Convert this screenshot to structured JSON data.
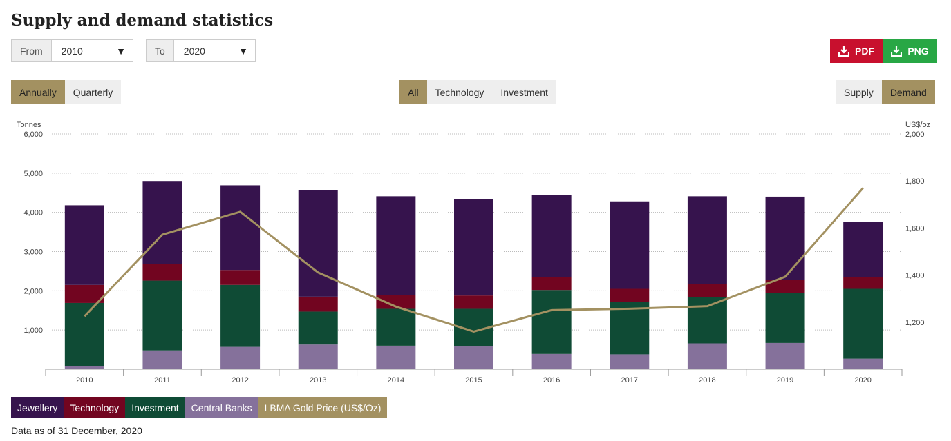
{
  "title": "Supply and demand statistics",
  "from": {
    "label": "From",
    "value": "2010"
  },
  "to": {
    "label": "To",
    "value": "2020"
  },
  "downloads": {
    "pdf": "PDF",
    "png": "PNG",
    "pdf_color": "#c8102e",
    "png_color": "#28a745"
  },
  "period": {
    "annually": "Annually",
    "quarterly": "Quarterly",
    "active": "annually"
  },
  "sector": {
    "all": "All",
    "technology": "Technology",
    "investment": "Investment",
    "active": "all"
  },
  "side": {
    "supply": "Supply",
    "demand": "Demand",
    "active": "demand"
  },
  "legend": [
    {
      "label": "Jewellery",
      "color": "#36134d"
    },
    {
      "label": "Technology",
      "color": "#720520"
    },
    {
      "label": "Investment",
      "color": "#0f4b35"
    },
    {
      "label": "Central Banks",
      "color": "#85719b"
    },
    {
      "label": "LBMA Gold Price (US$/Oz)",
      "color": "#a39161"
    }
  ],
  "footnote": "Data as of 31 December, 2020",
  "chart_data": {
    "type": "bar",
    "stacked": true,
    "categories": [
      "2010",
      "2011",
      "2012",
      "2013",
      "2014",
      "2015",
      "2016",
      "2017",
      "2018",
      "2019",
      "2020"
    ],
    "ylabel": "Tonnes",
    "y2label": "US$/oz",
    "ylim": [
      0,
      6000
    ],
    "y2lim": [
      1000,
      2000
    ],
    "yticks": [
      "1,000",
      "2,000",
      "3,000",
      "4,000",
      "5,000",
      "6,000"
    ],
    "y2ticks": [
      "1,200",
      "1,400",
      "1,600",
      "1,800",
      "2,000"
    ],
    "grid": true,
    "series": [
      {
        "name": "Central Banks",
        "color": "#85719b",
        "values": [
          80,
          480,
          570,
          630,
          600,
          580,
          390,
          380,
          660,
          670,
          270
        ]
      },
      {
        "name": "Investment",
        "color": "#0f4b35",
        "values": [
          1610,
          1780,
          1580,
          840,
          940,
          960,
          1630,
          1330,
          1170,
          1280,
          1780
        ]
      },
      {
        "name": "Technology",
        "color": "#720520",
        "values": [
          460,
          430,
          380,
          380,
          350,
          340,
          330,
          340,
          340,
          330,
          300
        ]
      },
      {
        "name": "Jewellery",
        "color": "#36134d",
        "values": [
          2030,
          2110,
          2160,
          2710,
          2520,
          2460,
          2090,
          2230,
          2240,
          2120,
          1410
        ]
      }
    ],
    "line": {
      "name": "LBMA Gold Price (US$/Oz)",
      "color": "#a39161",
      "axis": "right",
      "values": [
        1225,
        1572,
        1669,
        1411,
        1266,
        1160,
        1251,
        1257,
        1268,
        1393,
        1770
      ]
    }
  }
}
